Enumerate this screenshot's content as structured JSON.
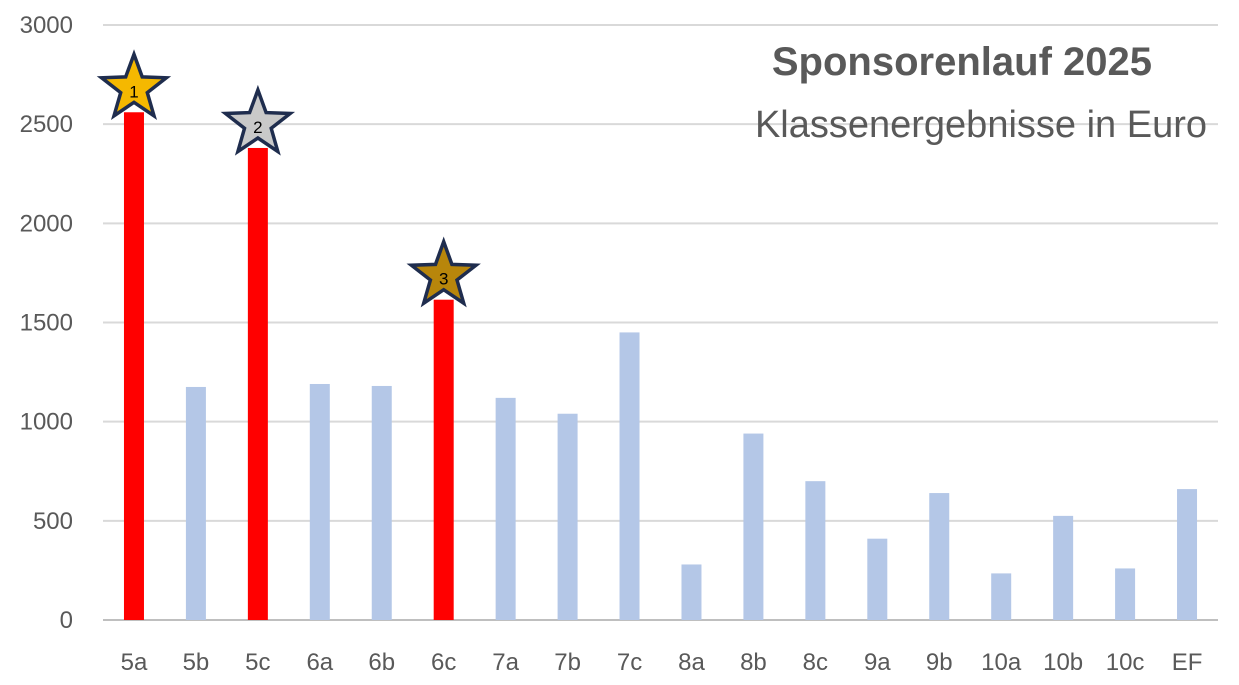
{
  "chart_data": {
    "type": "bar",
    "title": "Sponsorenlauf 2025",
    "subtitle": "Klassenergebnisse in Euro",
    "categories": [
      "5a",
      "5b",
      "5c",
      "6a",
      "6b",
      "6c",
      "7a",
      "7b",
      "7c",
      "8a",
      "8b",
      "8c",
      "9a",
      "9b",
      "10a",
      "10b",
      "10c",
      "EF"
    ],
    "values": [
      2560,
      1175,
      2380,
      1190,
      1180,
      1615,
      1120,
      1040,
      1450,
      280,
      940,
      700,
      410,
      640,
      235,
      525,
      260,
      660
    ],
    "yticks": [
      "0",
      "500",
      "1000",
      "1500",
      "2000",
      "2500",
      "3000"
    ],
    "ylim": [
      0,
      3000
    ],
    "grid": true,
    "colors": {
      "default": "#b4c7e7",
      "highlight": "#ff0000",
      "grid": "#d9d9d9",
      "axis": "#bfbfbf",
      "text": "#595959"
    },
    "highlighted": [
      0,
      2,
      5
    ],
    "ranks": [
      {
        "index": 0,
        "label": "1",
        "color": "#f5b800",
        "name": "star-gold-icon"
      },
      {
        "index": 2,
        "label": "2",
        "color": "#c9c9c9",
        "name": "star-silver-icon"
      },
      {
        "index": 5,
        "label": "3",
        "color": "#b8860b",
        "name": "star-bronze-icon"
      }
    ],
    "star_outline": "#1f2d4e"
  }
}
